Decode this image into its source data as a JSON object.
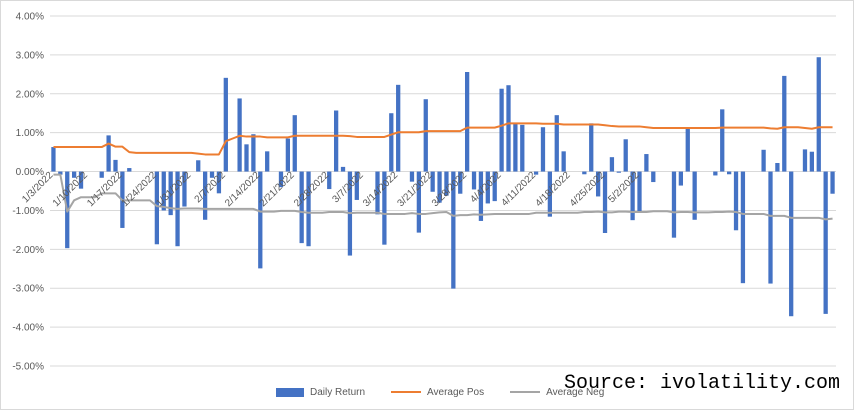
{
  "chart_data": {
    "type": "bar",
    "title": "",
    "xlabel": "",
    "ylabel": "",
    "ylim": [
      -0.05,
      0.04
    ],
    "y_ticks": [
      "4.00%",
      "3.00%",
      "2.00%",
      "1.00%",
      "0.00%",
      "-1.00%",
      "-2.00%",
      "-3.00%",
      "-4.00%",
      "-5.00%"
    ],
    "y_tick_values": [
      0.04,
      0.03,
      0.02,
      0.01,
      0.0,
      -0.01,
      -0.02,
      -0.03,
      -0.04,
      -0.05
    ],
    "x_tick_labels": [
      "1/3/2022",
      "1/10/2022",
      "1/17/2022",
      "1/24/2022",
      "1/31/2022",
      "2/7/2022",
      "2/14/2022",
      "2/21/2022",
      "2/28/2022",
      "3/7/2022",
      "3/14/2022",
      "3/21/2022",
      "3/28/2022",
      "4/4/2022",
      "4/11/2022",
      "4/18/2022",
      "4/25/2022",
      "5/2/2022"
    ],
    "x_tick_index": [
      0,
      5,
      10,
      15,
      20,
      25,
      30,
      35,
      40,
      45,
      50,
      55,
      60,
      65,
      70,
      75,
      80,
      85
    ],
    "grid": true,
    "legend": "bottom",
    "series": [
      {
        "name": "Daily Return",
        "type": "bar",
        "color": "#4472c4",
        "values": [
          0.0063,
          -0.0008,
          -0.0197,
          -0.0016,
          -0.0044,
          0.0,
          0.0,
          -0.0016,
          0.0093,
          0.003,
          -0.0145,
          0.0009,
          0.0,
          0.0,
          0.0,
          -0.0187,
          -0.01,
          -0.0112,
          -0.0192,
          -0.009,
          0.0,
          0.0029,
          -0.0124,
          -0.0016,
          -0.0056,
          0.0241,
          0.0,
          0.0188,
          0.007,
          0.0096,
          -0.0249,
          0.0052,
          0.0,
          -0.004,
          0.0085,
          0.0145,
          -0.0184,
          -0.0192,
          0.0,
          0.0,
          -0.0045,
          0.0157,
          0.0012,
          -0.0216,
          -0.0073,
          0.0,
          0.0,
          -0.011,
          -0.0188,
          0.015,
          0.0223,
          0.0,
          -0.0026,
          -0.0157,
          0.0186,
          -0.0052,
          -0.008,
          -0.0062,
          -0.0301,
          -0.0057,
          0.0256,
          -0.0046,
          -0.0127,
          -0.0082,
          -0.0076,
          0.0213,
          0.0222,
          0.0125,
          0.012,
          0.0,
          -0.0008,
          0.0114,
          -0.0116,
          0.0145,
          0.0052,
          0.0,
          0.0,
          -0.0007,
          0.0124,
          -0.0064,
          -0.0158,
          0.0037,
          -0.0003,
          0.0083,
          -0.0125,
          -0.0104,
          0.0045,
          -0.0027,
          0.0,
          0.0,
          -0.017,
          -0.0036,
          0.011,
          -0.0124,
          0.0,
          0.0,
          -0.001,
          0.016,
          -0.0007,
          -0.0151,
          -0.0287,
          0.0,
          0.0,
          0.0056,
          -0.0288,
          0.0022,
          0.0246,
          -0.0372,
          0.0,
          0.0057,
          0.0051,
          0.0294,
          -0.0366,
          -0.0057
        ]
      },
      {
        "name": "Average Pos",
        "type": "line",
        "color": "#ed7d31",
        "values": [
          0.0063,
          0.0063,
          0.0063,
          0.0063,
          0.0063,
          0.0063,
          0.0063,
          0.0063,
          0.0072,
          0.0064,
          0.0064,
          0.005,
          0.0048,
          0.0048,
          0.0048,
          0.0048,
          0.0048,
          0.0048,
          0.0048,
          0.0048,
          0.0048,
          0.0046,
          0.0044,
          0.0044,
          0.0044,
          0.0078,
          0.0085,
          0.0092,
          0.009,
          0.009,
          0.009,
          0.0088,
          0.0088,
          0.0088,
          0.0088,
          0.0092,
          0.0092,
          0.0092,
          0.0092,
          0.0092,
          0.0092,
          0.0092,
          0.0092,
          0.0091,
          0.0089,
          0.0089,
          0.0089,
          0.0089,
          0.0089,
          0.0095,
          0.0101,
          0.0101,
          0.0101,
          0.0101,
          0.0104,
          0.0104,
          0.0104,
          0.0104,
          0.0104,
          0.0104,
          0.0113,
          0.0113,
          0.0113,
          0.0113,
          0.0113,
          0.0118,
          0.0124,
          0.0124,
          0.0124,
          0.0124,
          0.0124,
          0.0123,
          0.0123,
          0.0123,
          0.0121,
          0.0121,
          0.0121,
          0.0121,
          0.0121,
          0.0121,
          0.0119,
          0.0117,
          0.0116,
          0.0116,
          0.0116,
          0.0116,
          0.0114,
          0.0112,
          0.0112,
          0.0112,
          0.0112,
          0.0112,
          0.0112,
          0.0112,
          0.0112,
          0.0112,
          0.0112,
          0.0113,
          0.0113,
          0.0113,
          0.0113,
          0.0113,
          0.0113,
          0.0113,
          0.0111,
          0.011,
          0.0114,
          0.0114,
          0.0114,
          0.0112,
          0.011,
          0.0114,
          0.0114,
          0.0114
        ]
      },
      {
        "name": "Average Neg",
        "type": "line",
        "color": "#a5a5a5",
        "values": [
          -0.0008,
          -0.0008,
          -0.0103,
          -0.0074,
          -0.0066,
          -0.0066,
          -0.0066,
          -0.0056,
          -0.0056,
          -0.0056,
          -0.0074,
          -0.0074,
          -0.0074,
          -0.0074,
          -0.0074,
          -0.0089,
          -0.0091,
          -0.0094,
          -0.0096,
          -0.0095,
          -0.0095,
          -0.0095,
          -0.0096,
          -0.0096,
          -0.0096,
          -0.0096,
          -0.0096,
          -0.0096,
          -0.0096,
          -0.0096,
          -0.0103,
          -0.0103,
          -0.0103,
          -0.0101,
          -0.0101,
          -0.0101,
          -0.0104,
          -0.0106,
          -0.0106,
          -0.0106,
          -0.0104,
          -0.0104,
          -0.0104,
          -0.0107,
          -0.0106,
          -0.0106,
          -0.0106,
          -0.0106,
          -0.0109,
          -0.0109,
          -0.0109,
          -0.0109,
          -0.0107,
          -0.0109,
          -0.0109,
          -0.0107,
          -0.0105,
          -0.0104,
          -0.0114,
          -0.0112,
          -0.0112,
          -0.011,
          -0.0111,
          -0.011,
          -0.0109,
          -0.0109,
          -0.0109,
          -0.0109,
          -0.0109,
          -0.0109,
          -0.0106,
          -0.0106,
          -0.0106,
          -0.0106,
          -0.0106,
          -0.0106,
          -0.0106,
          -0.0104,
          -0.0104,
          -0.0103,
          -0.0105,
          -0.0105,
          -0.0103,
          -0.0103,
          -0.0104,
          -0.0104,
          -0.0104,
          -0.0102,
          -0.0102,
          -0.0102,
          -0.0105,
          -0.0104,
          -0.0104,
          -0.0105,
          -0.0105,
          -0.0105,
          -0.0104,
          -0.0104,
          -0.0103,
          -0.0104,
          -0.0109,
          -0.0109,
          -0.0109,
          -0.0109,
          -0.0114,
          -0.0114,
          -0.0114,
          -0.0119,
          -0.0119,
          -0.0119,
          -0.0119,
          -0.0119,
          -0.0123,
          -0.0121
        ]
      }
    ]
  },
  "legend": {
    "bar_label": "Daily Return",
    "pos_label": "Average Pos",
    "neg_label": "Average Neg"
  },
  "source": "Source: ivolatility.com",
  "colors": {
    "bar": "#4472c4",
    "avg_pos": "#ed7d31",
    "avg_neg": "#a5a5a5",
    "grid": "#d9d9d9"
  }
}
